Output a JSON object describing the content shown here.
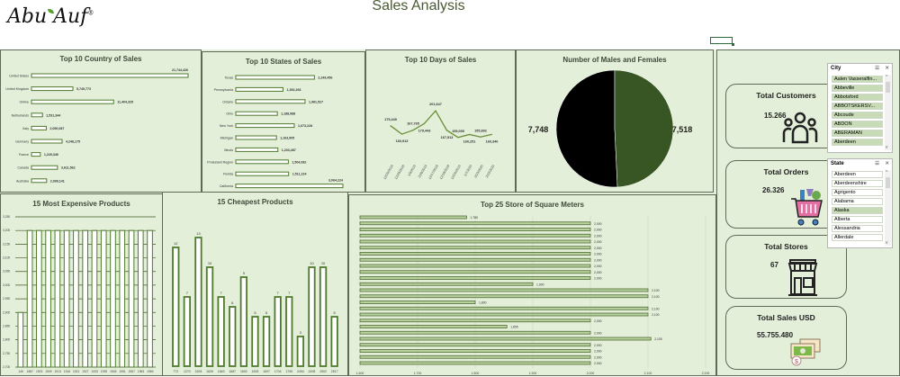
{
  "header": {
    "logo": "Abu Auf",
    "title": "Sales Analysis"
  },
  "colors": {
    "bar_stroke": "#4f7a2e",
    "panel_bg": "#e3efd9",
    "male": "#000000",
    "female": "#375623"
  },
  "kpis": [
    {
      "label": "Total Customers",
      "value": "15.266",
      "icon": "people-icon"
    },
    {
      "label": "Total Orders",
      "value": "26.326",
      "icon": "shopping-cart-icon"
    },
    {
      "label": "Total Stores",
      "value": "67",
      "icon": "storefront-icon"
    },
    {
      "label": "Total Sales USD",
      "value": "55.755.480",
      "icon": "money-icon"
    }
  ],
  "slicers": {
    "city": {
      "title": "City",
      "items": [
        {
          "label": "Aalen Vasseralfin...",
          "selected": true
        },
        {
          "label": "Abbeville",
          "selected": true
        },
        {
          "label": "Abbotsford",
          "selected": true
        },
        {
          "label": "ABBOTSKERSV...",
          "selected": true
        },
        {
          "label": "Abcoude",
          "selected": true
        },
        {
          "label": "ABDON",
          "selected": true
        },
        {
          "label": "ABERAMAN",
          "selected": true
        },
        {
          "label": "Aberdeen",
          "selected": true
        }
      ]
    },
    "state": {
      "title": "State",
      "items": [
        {
          "label": "Aberdeen",
          "selected": false
        },
        {
          "label": "Aberdeenshire",
          "selected": false
        },
        {
          "label": "Agrigento",
          "selected": false
        },
        {
          "label": "Alabama",
          "selected": false
        },
        {
          "label": "Alaska",
          "selected": true
        },
        {
          "label": "Alberta",
          "selected": false
        },
        {
          "label": "Alessandria",
          "selected": false
        },
        {
          "label": "Allerdale",
          "selected": false
        }
      ]
    }
  },
  "chart_data": [
    {
      "id": "country",
      "type": "bar",
      "orientation": "horizontal",
      "title": "Top 10 Country of Sales",
      "categories": [
        "United States",
        "United Kingdom",
        "Online",
        "Netherlands",
        "Italy",
        "Germany",
        "France",
        "Canada",
        "Australia"
      ],
      "values": [
        21744426,
        5749773,
        11404325,
        1531344,
        2050087,
        4248175,
        1229346,
        3611562,
        2099141
      ],
      "labels": [
        "21,744,426",
        "5,749,773",
        "11,404,325",
        "1,531,344",
        "2,050,087",
        "4,248,175",
        "1,229,346",
        "3,611,562",
        "2,099,141"
      ]
    },
    {
      "id": "states",
      "type": "bar",
      "orientation": "horizontal",
      "title": "Top 10 States of Sales",
      "categories": [
        "Texas",
        "Pennsylvania",
        "Ontario",
        "Ohio",
        "New York",
        "Michigan",
        "Illinois",
        "Protestant Region",
        "Florida",
        "California"
      ],
      "values": [
        2249456,
        1352266,
        1981527,
        1188988,
        1673228,
        1163905,
        1203487,
        1504082,
        1511224,
        3064224
      ],
      "labels": [
        "2,249,456",
        "1,352,266",
        "1,981,527",
        "1,188,988",
        "1,673,228",
        "1,163,905",
        "1,203,487",
        "1,504,082",
        "1,511,224",
        "3,064,224"
      ]
    },
    {
      "id": "days",
      "type": "line",
      "title": "Top  10 Days of Sales",
      "categories": [
        "12/20/2016",
        "12/29/2016",
        "1/9/2019",
        "2/26/2019",
        "12/17/2018",
        "12/18/2018",
        "12/20/2019",
        "1/7/2020",
        "2/23/2020",
        "2/22/2020"
      ],
      "values": [
        175449,
        160913,
        167765,
        179443,
        201647,
        167513,
        155055,
        160251,
        155892,
        160340
      ],
      "labels": [
        "175,449",
        "160,913",
        "167,765",
        "179,443",
        "201,647",
        "167,513",
        "155,055",
        "160,251",
        "155,892",
        "160,340"
      ]
    },
    {
      "id": "gender",
      "type": "pie",
      "title": "Number of Males and Females",
      "slices": [
        {
          "name": "Male",
          "value": 7748,
          "label": "7,748"
        },
        {
          "name": "Female",
          "value": 7518,
          "label": "7,518"
        }
      ]
    },
    {
      "id": "expensive",
      "type": "bar",
      "title": "15 Most Expensive Products",
      "categories": [
        "146",
        "1887",
        "1903",
        "1909",
        "1913",
        "1916",
        "1921",
        "1927",
        "1933",
        "1939",
        "1945",
        "1951",
        "1957",
        "1963",
        "1969"
      ],
      "values": [
        2900,
        3200,
        3200,
        3200,
        3200,
        3200,
        3200,
        3200,
        3200,
        3200,
        3200,
        3200,
        3200,
        3200,
        3200
      ],
      "ylim": [
        2700,
        3250
      ],
      "yticks": [
        "2,700",
        "2,750",
        "2,800",
        "2,850",
        "2,900",
        "2,950",
        "3,000",
        "3,050",
        "3,100",
        "3,150",
        "3,200",
        "3,250"
      ]
    },
    {
      "id": "cheapest",
      "type": "bar",
      "title": "15 Cheapest Products",
      "categories": [
        "772",
        "1270",
        "1593",
        "1639",
        "1663",
        "1687",
        "1692",
        "1693",
        "1697",
        "1704",
        "1705",
        "2494",
        "2495",
        "2502",
        "2517"
      ],
      "values": [
        12,
        7,
        13,
        10,
        7,
        6,
        9,
        5,
        5,
        7,
        7,
        3,
        10,
        10,
        5
      ],
      "ylim": [
        0,
        13.5
      ]
    },
    {
      "id": "stores",
      "type": "bar",
      "orientation": "horizontal",
      "title": "Top 25 Store of Square Meters",
      "values": [
        1785,
        2000,
        2000,
        2000,
        2000,
        2000,
        2000,
        2000,
        2000,
        2000,
        2000,
        1900,
        2100,
        2100,
        1800,
        2100,
        2100,
        2000,
        1855,
        2000,
        2105,
        2000,
        2000,
        2000,
        2000
      ],
      "labels": [
        "1,785",
        "2,000",
        "2,000",
        "2,000",
        "2,000",
        "2,000",
        "2,000",
        "2,000",
        "2,000",
        "2,000",
        "2,000",
        "1,900",
        "2,100",
        "2,100",
        "1,800",
        "2,100",
        "2,100",
        "2,000",
        "1,855",
        "2,000",
        "2,105",
        "2,000",
        "2,000",
        "2,000",
        "2,000"
      ],
      "xlim": [
        1600,
        2200
      ],
      "xticks": [
        "1,600",
        "1,700",
        "1,800",
        "1,900",
        "2,000",
        "2,100",
        "2,200"
      ]
    }
  ]
}
